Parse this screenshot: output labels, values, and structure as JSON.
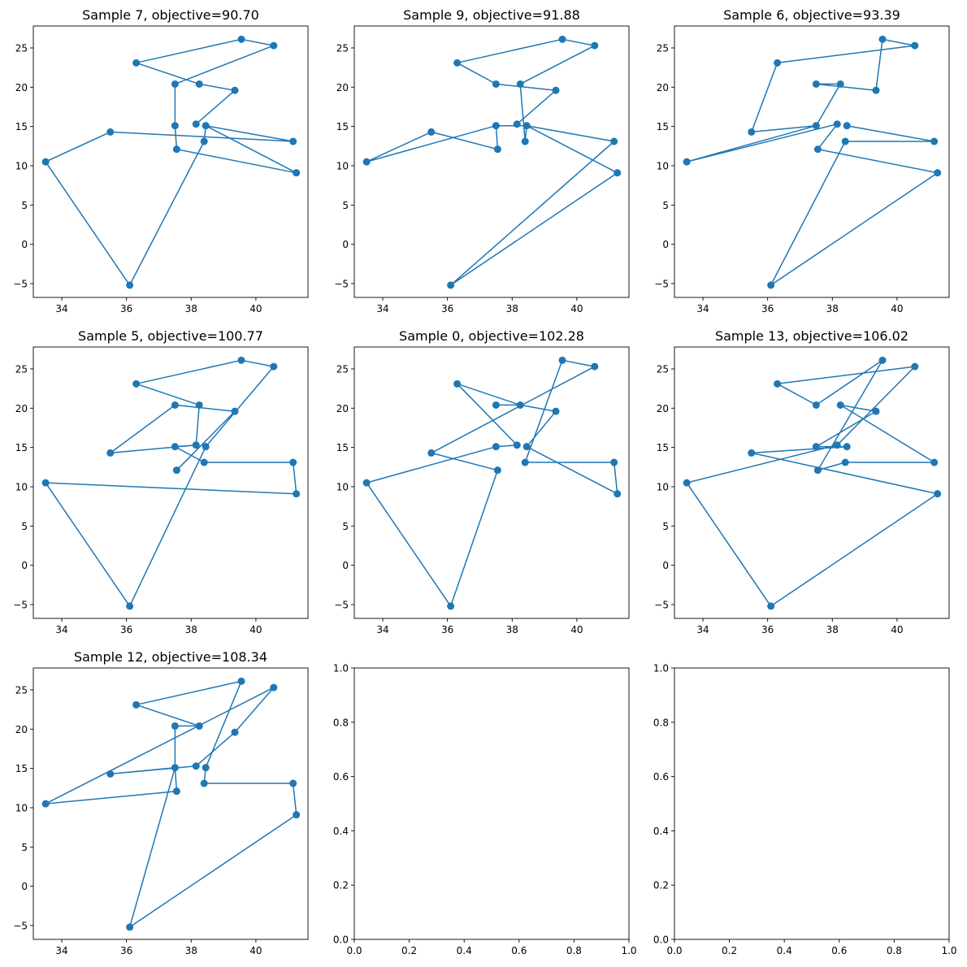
{
  "figure": {
    "background": "#ffffff",
    "line_color": "#1f77b4"
  },
  "chart_data": {
    "type": "line",
    "description": "Grid of 3x3 subplots showing sampled tour routes through the same set of points; last two subplots are empty.",
    "points": [
      [
        33.5,
        10.5
      ],
      [
        35.5,
        14.3
      ],
      [
        36.1,
        -5.2
      ],
      [
        36.3,
        23.1
      ],
      [
        37.5,
        20.4
      ],
      [
        37.5,
        15.1
      ],
      [
        37.55,
        12.1
      ],
      [
        38.15,
        15.3
      ],
      [
        38.25,
        20.4
      ],
      [
        38.4,
        13.1
      ],
      [
        38.45,
        15.1
      ],
      [
        39.35,
        19.6
      ],
      [
        39.55,
        26.1
      ],
      [
        40.55,
        25.3
      ],
      [
        41.15,
        13.1
      ],
      [
        41.25,
        9.1
      ]
    ],
    "subplots": [
      {
        "title": "Sample 7, objective=90.70",
        "sample": 7,
        "objective": 90.7,
        "route": [
          7,
          11,
          8,
          3,
          12,
          13,
          4,
          5,
          6,
          15,
          10,
          14,
          1,
          0,
          2,
          9,
          10
        ],
        "xlim": [
          33.12,
          41.61
        ],
        "ylim": [
          -6.76,
          27.79
        ],
        "xticks": [
          "34",
          "36",
          "38",
          "40"
        ],
        "xtick_values": [
          34,
          36,
          38,
          40
        ],
        "yticks": [
          "−5",
          "0",
          "5",
          "10",
          "15",
          "20",
          "25"
        ],
        "ytick_values": [
          -5,
          0,
          5,
          10,
          15,
          20,
          25
        ]
      },
      {
        "title": "Sample 9, objective=91.88",
        "sample": 9,
        "objective": 91.88,
        "route": [
          7,
          11,
          4,
          3,
          12,
          13,
          8,
          9,
          10,
          15,
          2,
          14,
          10,
          5,
          6,
          1,
          0,
          5
        ],
        "xlim": [
          33.12,
          41.61
        ],
        "ylim": [
          -6.76,
          27.79
        ],
        "xticks": [
          "34",
          "36",
          "38",
          "40"
        ],
        "xtick_values": [
          34,
          36,
          38,
          40
        ],
        "yticks": [
          "−5",
          "0",
          "5",
          "10",
          "15",
          "20",
          "25"
        ],
        "ytick_values": [
          -5,
          0,
          5,
          10,
          15,
          20,
          25
        ]
      },
      {
        "title": "Sample 6, objective=93.39",
        "sample": 6,
        "objective": 93.39,
        "route": [
          10,
          14,
          9,
          2,
          15,
          6,
          7,
          0,
          5,
          8,
          4,
          11,
          12,
          13,
          3,
          1,
          5
        ],
        "xlim": [
          33.12,
          41.61
        ],
        "ylim": [
          -6.76,
          27.79
        ],
        "xticks": [
          "34",
          "36",
          "38",
          "40"
        ],
        "xtick_values": [
          34,
          36,
          38,
          40
        ],
        "yticks": [
          "−5",
          "0",
          "5",
          "10",
          "15",
          "20",
          "25"
        ],
        "ytick_values": [
          -5,
          0,
          5,
          10,
          15,
          20,
          25
        ]
      },
      {
        "title": "Sample 5, objective=100.77",
        "sample": 5,
        "objective": 100.77,
        "route": [
          6,
          11,
          4,
          1,
          7,
          8,
          3,
          12,
          13,
          10,
          2,
          0,
          15,
          14,
          9,
          5,
          7
        ],
        "xlim": [
          33.12,
          41.61
        ],
        "ylim": [
          -6.76,
          27.79
        ],
        "xticks": [
          "34",
          "36",
          "38",
          "40"
        ],
        "xtick_values": [
          34,
          36,
          38,
          40
        ],
        "yticks": [
          "−5",
          "0",
          "5",
          "10",
          "15",
          "20",
          "25"
        ],
        "ytick_values": [
          -5,
          0,
          5,
          10,
          15,
          20,
          25
        ]
      },
      {
        "title": "Sample 0, objective=102.28",
        "sample": 0,
        "objective": 102.28,
        "route": [
          4,
          8,
          11,
          10,
          15,
          14,
          9,
          12,
          13,
          1,
          6,
          2,
          0,
          5,
          7,
          3,
          8
        ],
        "xlim": [
          33.12,
          41.61
        ],
        "ylim": [
          -6.76,
          27.79
        ],
        "xticks": [
          "34",
          "36",
          "38",
          "40"
        ],
        "xtick_values": [
          34,
          36,
          38,
          40
        ],
        "yticks": [
          "−5",
          "0",
          "5",
          "10",
          "15",
          "20",
          "25"
        ],
        "ytick_values": [
          -5,
          0,
          5,
          10,
          15,
          20,
          25
        ]
      },
      {
        "title": "Sample 13, objective=106.02",
        "sample": 13,
        "objective": 106.02,
        "route": [
          3,
          4,
          12,
          6,
          9,
          14,
          8,
          11,
          5,
          10,
          1,
          15,
          2,
          0,
          7,
          13,
          3
        ],
        "xlim": [
          33.12,
          41.61
        ],
        "ylim": [
          -6.76,
          27.79
        ],
        "xticks": [
          "34",
          "36",
          "38",
          "40"
        ],
        "xtick_values": [
          34,
          36,
          38,
          40
        ],
        "yticks": [
          "−5",
          "0",
          "5",
          "10",
          "15",
          "20",
          "25"
        ],
        "ytick_values": [
          -5,
          0,
          5,
          10,
          15,
          20,
          25
        ]
      },
      {
        "title": "Sample 12, objective=108.34",
        "sample": 12,
        "objective": 108.34,
        "route": [
          10,
          12,
          3,
          8,
          4,
          5,
          6,
          0,
          13,
          11,
          7,
          1,
          5,
          2,
          15,
          14,
          9,
          10
        ],
        "xlim": [
          33.12,
          41.61
        ],
        "ylim": [
          -6.76,
          27.79
        ],
        "xticks": [
          "34",
          "36",
          "38",
          "40"
        ],
        "xtick_values": [
          34,
          36,
          38,
          40
        ],
        "yticks": [
          "−5",
          "0",
          "5",
          "10",
          "15",
          "20",
          "25"
        ],
        "ytick_values": [
          -5,
          0,
          5,
          10,
          15,
          20,
          25
        ]
      },
      {
        "title": "",
        "empty": true,
        "xlim": [
          0,
          1
        ],
        "ylim": [
          0,
          1
        ],
        "xticks": [
          "0.0",
          "0.2",
          "0.4",
          "0.6",
          "0.8",
          "1.0"
        ],
        "xtick_values": [
          0,
          0.2,
          0.4,
          0.6,
          0.8,
          1.0
        ],
        "yticks": [
          "0.0",
          "0.2",
          "0.4",
          "0.6",
          "0.8",
          "1.0"
        ],
        "ytick_values": [
          0,
          0.2,
          0.4,
          0.6,
          0.8,
          1.0
        ]
      },
      {
        "title": "",
        "empty": true,
        "xlim": [
          0,
          1
        ],
        "ylim": [
          0,
          1
        ],
        "xticks": [
          "0.0",
          "0.2",
          "0.4",
          "0.6",
          "0.8",
          "1.0"
        ],
        "xtick_values": [
          0,
          0.2,
          0.4,
          0.6,
          0.8,
          1.0
        ],
        "yticks": [
          "0.0",
          "0.2",
          "0.4",
          "0.6",
          "0.8",
          "1.0"
        ],
        "ytick_values": [
          0,
          0.2,
          0.4,
          0.6,
          0.8,
          1.0
        ]
      }
    ]
  }
}
